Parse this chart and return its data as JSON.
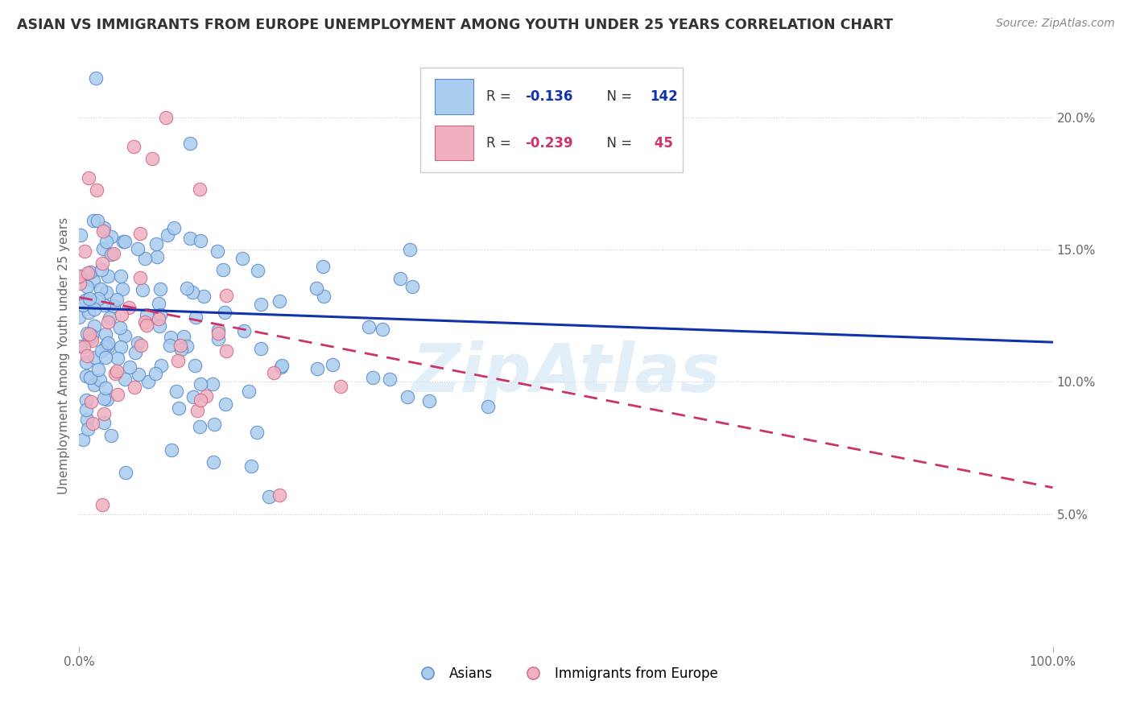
{
  "title": "ASIAN VS IMMIGRANTS FROM EUROPE UNEMPLOYMENT AMONG YOUTH UNDER 25 YEARS CORRELATION CHART",
  "source": "Source: ZipAtlas.com",
  "ylabel": "Unemployment Among Youth under 25 years",
  "xlim": [
    0,
    100
  ],
  "ylim": [
    0,
    22
  ],
  "yticks": [
    5,
    10,
    15,
    20
  ],
  "ytick_labels": [
    "5.0%",
    "10.0%",
    "15.0%",
    "20.0%"
  ],
  "asian_color": "#aaccee",
  "asian_edge_color": "#5588cc",
  "europe_color": "#f0b0c0",
  "europe_edge_color": "#cc6680",
  "asian_line_color": "#1133aa",
  "europe_line_color": "#cc3366",
  "r_asian": -0.136,
  "n_asian": 142,
  "r_europe": -0.239,
  "n_europe": 45,
  "watermark": "ZipAtlas",
  "background_color": "#ffffff",
  "grid_color": "#cccccc",
  "title_color": "#333333",
  "axis_label_color": "#666666",
  "legend_label_asian": "Asians",
  "legend_label_europe": "Immigrants from Europe"
}
